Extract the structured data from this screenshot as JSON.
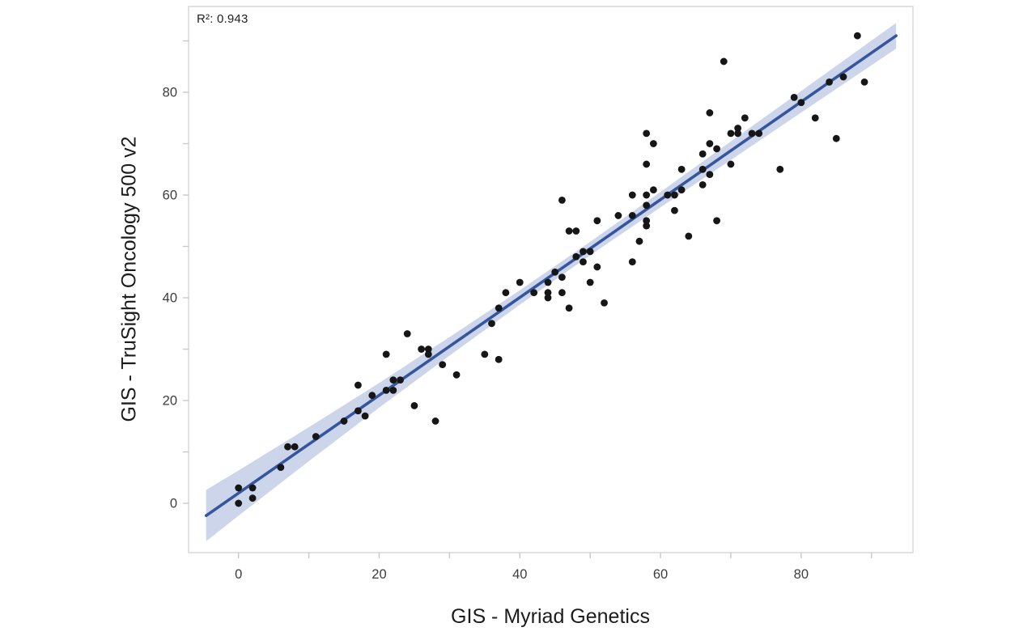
{
  "chart_data": {
    "type": "scatter",
    "title": "",
    "xlabel": "GIS - Myriad Genetics",
    "ylabel": "GIS - TruSight Oncology 500 v2",
    "annotation": "R²: 0.943",
    "r_squared": 0.943,
    "xlim": [
      -7.1,
      95.9
    ],
    "ylim": [
      -9.6,
      96.7
    ],
    "x_major_ticks": [
      0,
      20,
      40,
      60,
      80
    ],
    "x_minor_ticks": [
      10,
      30,
      50,
      70,
      90
    ],
    "y_major_ticks": [
      0,
      20,
      40,
      60,
      80
    ],
    "y_minor_ticks": [
      10,
      30,
      50,
      70,
      90
    ],
    "grid": false,
    "legend": "none",
    "points": [
      [
        0,
        0
      ],
      [
        0,
        3
      ],
      [
        2,
        3
      ],
      [
        2,
        1
      ],
      [
        6,
        7
      ],
      [
        7,
        11
      ],
      [
        8,
        11
      ],
      [
        11,
        13
      ],
      [
        15,
        16
      ],
      [
        17,
        18
      ],
      [
        18,
        17
      ],
      [
        17,
        23
      ],
      [
        19,
        21
      ],
      [
        21,
        22
      ],
      [
        22,
        22
      ],
      [
        22,
        24
      ],
      [
        23,
        24
      ],
      [
        21,
        29
      ],
      [
        24,
        33
      ],
      [
        26,
        30
      ],
      [
        27,
        30
      ],
      [
        27,
        29
      ],
      [
        25,
        19
      ],
      [
        28,
        16
      ],
      [
        29,
        27
      ],
      [
        31,
        25
      ],
      [
        35,
        29
      ],
      [
        37,
        28
      ],
      [
        36,
        35
      ],
      [
        37,
        38
      ],
      [
        38,
        41
      ],
      [
        40,
        43
      ],
      [
        42,
        41
      ],
      [
        44,
        43
      ],
      [
        44,
        41
      ],
      [
        44,
        40
      ],
      [
        45,
        45
      ],
      [
        46,
        44
      ],
      [
        46,
        41
      ],
      [
        47,
        38
      ],
      [
        50,
        43
      ],
      [
        52,
        39
      ],
      [
        46,
        59
      ],
      [
        47,
        53
      ],
      [
        48,
        53
      ],
      [
        49,
        49
      ],
      [
        48,
        48
      ],
      [
        50,
        49
      ],
      [
        49,
        47
      ],
      [
        51,
        46
      ],
      [
        51,
        55
      ],
      [
        54,
        56
      ],
      [
        56,
        56
      ],
      [
        56,
        60
      ],
      [
        56,
        47
      ],
      [
        57,
        51
      ],
      [
        58,
        66
      ],
      [
        58,
        60
      ],
      [
        59,
        61
      ],
      [
        58,
        58
      ],
      [
        58,
        55
      ],
      [
        58,
        54
      ],
      [
        61,
        60
      ],
      [
        62,
        60
      ],
      [
        62,
        57
      ],
      [
        63,
        61
      ],
      [
        64,
        52
      ],
      [
        66,
        62
      ],
      [
        68,
        55
      ],
      [
        58,
        72
      ],
      [
        59,
        70
      ],
      [
        63,
        65
      ],
      [
        66,
        68
      ],
      [
        67,
        70
      ],
      [
        68,
        69
      ],
      [
        66,
        65
      ],
      [
        67,
        64
      ],
      [
        70,
        66
      ],
      [
        70,
        72
      ],
      [
        71,
        72
      ],
      [
        71,
        73
      ],
      [
        72,
        75
      ],
      [
        73,
        72
      ],
      [
        74,
        72
      ],
      [
        67,
        76
      ],
      [
        69,
        86
      ],
      [
        77,
        65
      ],
      [
        79,
        79
      ],
      [
        80,
        78
      ],
      [
        82,
        75
      ],
      [
        84,
        82
      ],
      [
        86,
        83
      ],
      [
        85,
        71
      ],
      [
        88,
        91
      ],
      [
        89,
        82
      ]
    ],
    "regression_line": {
      "x1": -4.6,
      "y1": -2.4,
      "x2": 93.5,
      "y2": 91.0
    },
    "confidence_band": {
      "x": [
        -4.6,
        0,
        10,
        20,
        30,
        40,
        50,
        60,
        70,
        80,
        90,
        93.5
      ],
      "half_width": [
        5.0,
        4.4,
        3.3,
        2.4,
        1.8,
        1.4,
        1.3,
        1.5,
        1.8,
        2.1,
        2.4,
        2.5
      ]
    },
    "colors": {
      "point": "#161616",
      "line": "#35569f",
      "band": "#ccd5e9",
      "axis": "#d6d6d6",
      "tick": "#c9c9c9",
      "tick_label": "#3d3d3d",
      "axis_title": "#1c1c1c"
    }
  }
}
